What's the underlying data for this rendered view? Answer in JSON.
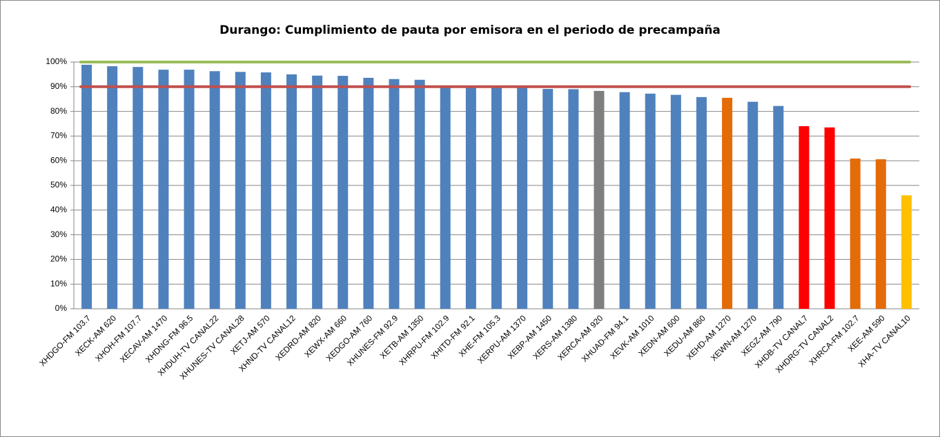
{
  "chart_data": {
    "type": "bar",
    "title": "Durango: Cumplimiento de pauta por emisora en el periodo de precampaña",
    "categories": [
      "XHDGO-FM 103.7",
      "XECK-AM 620",
      "XHOH-FM 107.7",
      "XECAV-AM 1470",
      "XHDNG-FM 96.5",
      "XHDUH-TV CANAL22",
      "XHUNES-TV CANAL28",
      "XETJ-AM 570",
      "XHND-TV CANAL12",
      "XEDRD-AM 820",
      "XEWX-AM 660",
      "XEDGO-AM 760",
      "XHUNES-FM 92.9",
      "XETB-AM 1350",
      "XHRPU-FM 102.9",
      "XHITD-FM 92.1",
      "XHE-FM 105.3",
      "XERPU-AM 1370",
      "XEBP-AM 1450",
      "XERS-AM 1380",
      "XERCA-AM 920",
      "XHUAD-FM 94.1",
      "XEVK-AM 1010",
      "XEDN-AM 600",
      "XEDU-AM 860",
      "XEHD-AM 1270",
      "XEWN-AM 1270",
      "XEGZ-AM 790",
      "XHDB-TV CANAL7",
      "XHDRG-TV CANAL2",
      "XHRCA-FM 102.7",
      "XEE-AM 590",
      "XHA-TV CANAL10"
    ],
    "values": [
      98.9,
      98.3,
      98,
      96.9,
      96.9,
      96.3,
      96,
      95.8,
      95,
      94.5,
      94.4,
      93.6,
      93.1,
      92.8,
      90.2,
      90.1,
      90,
      89.7,
      89.1,
      89,
      88.3,
      87.8,
      87.2,
      86.7,
      85.8,
      85.5,
      83.9,
      82.2,
      74,
      73.5,
      60.9,
      60.6,
      46
    ],
    "colors": [
      "#4f81bd",
      "#4f81bd",
      "#4f81bd",
      "#4f81bd",
      "#4f81bd",
      "#4f81bd",
      "#4f81bd",
      "#4f81bd",
      "#4f81bd",
      "#4f81bd",
      "#4f81bd",
      "#4f81bd",
      "#4f81bd",
      "#4f81bd",
      "#4f81bd",
      "#4f81bd",
      "#4f81bd",
      "#4f81bd",
      "#4f81bd",
      "#4f81bd",
      "#7f7f7f",
      "#4f81bd",
      "#4f81bd",
      "#4f81bd",
      "#4f81bd",
      "#e36c09",
      "#4f81bd",
      "#4f81bd",
      "#ff0000",
      "#ff0000",
      "#e36c09",
      "#e36c09",
      "#ffc000"
    ],
    "ylim": [
      0,
      100
    ],
    "yticks": [
      {
        "value": 0,
        "label": "0%"
      },
      {
        "value": 10,
        "label": "10%"
      },
      {
        "value": 20,
        "label": "20%"
      },
      {
        "value": 30,
        "label": "30%"
      },
      {
        "value": 40,
        "label": "40%"
      },
      {
        "value": 50,
        "label": "50%"
      },
      {
        "value": 60,
        "label": "60%"
      },
      {
        "value": 70,
        "label": "70%"
      },
      {
        "value": 80,
        "label": "80%"
      },
      {
        "value": 90,
        "label": "90%"
      },
      {
        "value": 100,
        "label": "100%"
      }
    ],
    "grid": true,
    "reference_lines": [
      {
        "value": 100,
        "color": "#9bbb59"
      },
      {
        "value": 90,
        "color": "#c0504d"
      }
    ]
  }
}
